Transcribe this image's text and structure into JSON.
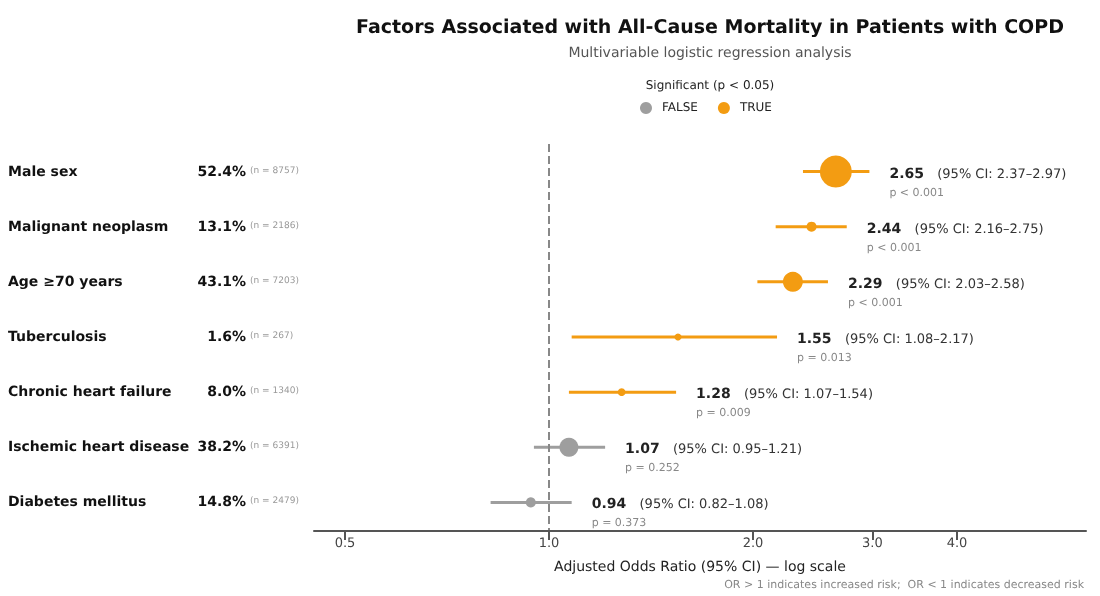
{
  "chart_data": {
    "type": "bubble",
    "title": "Factors Associated with All-Cause Mortality in Patients with COPD",
    "subtitle": "Multivariable logistic regression analysis",
    "xlabel": "Adjusted Odds Ratio (95% CI) — log scale",
    "legend_title": "Significant (p < 0.05)",
    "orientation": "horizontal",
    "log": "x",
    "marker": "circle",
    "legend": "top",
    "categories": [
      "Male sex",
      "Malignant neoplasm",
      "Age ≥70 years",
      "Tuberculosis",
      "Chronic heart failure",
      "Ischemic heart disease",
      "Diabetes mellitus"
    ],
    "series": [
      {
        "name": "FALSE",
        "color": "#9e9e9e",
        "values": [
          null,
          null,
          null,
          null,
          null,
          1.07,
          0.94
        ],
        "errors": [
          null,
          null,
          null,
          null,
          null,
          [
            0.95,
            1.21
          ],
          [
            0.82,
            1.08
          ]
        ],
        "sizes": [
          null,
          null,
          null,
          null,
          null,
          0.35,
          0.1
        ]
      },
      {
        "name": "TRUE",
        "color": "#f39c12",
        "values": [
          2.65,
          2.44,
          2.29,
          1.55,
          1.28,
          null,
          null
        ],
        "errors": [
          [
            2.37,
            2.97
          ],
          [
            2.16,
            2.75
          ],
          [
            2.03,
            2.58
          ],
          [
            1.08,
            2.17
          ],
          [
            1.07,
            1.54
          ],
          null,
          null
        ],
        "sizes": [
          1,
          0.1,
          0.39,
          0.05,
          0.06,
          null,
          null
        ]
      }
    ],
    "xlim": [
      0.45,
      6.2
    ],
    "xticks": [
      {
        "value": 0.5,
        "label": "0.5"
      },
      {
        "value": 1,
        "label": "1.0"
      },
      {
        "value": 2,
        "label": "2.0"
      },
      {
        "value": 3,
        "label": "3.0"
      },
      {
        "value": 4,
        "label": "4.0"
      }
    ],
    "ref_lines": [
      {
        "axis": "x",
        "value": 1,
        "label": null,
        "color": "#888888",
        "line_style": "dashed"
      }
    ],
    "grid": false,
    "annotations": [
      "52.4% (n = 8757)",
      "13.1% (n = 2186)",
      "43.1% (n = 7203)",
      "1.6% (n = 267)",
      "8.0% (n = 1340)",
      "38.2% (n = 6391)",
      "14.8% (n = 2479)",
      {
        "text": "2.65 (95% CI: 2.37–2.97)\np < 0.001",
        "x": 2.97,
        "y": "Male sex"
      },
      {
        "text": "2.44 (95% CI: 2.16–2.75)\np < 0.001",
        "x": 2.75,
        "y": "Malignant neoplasm"
      },
      {
        "text": "2.29 (95% CI: 2.03–2.58)\np < 0.001",
        "x": 2.58,
        "y": "Age ≥70 years"
      },
      {
        "text": "1.55 (95% CI: 1.08–2.17)\np = 0.013",
        "x": 2.17,
        "y": "Tuberculosis"
      },
      {
        "text": "1.28 (95% CI: 1.07–1.54)\np = 0.009",
        "x": 1.54,
        "y": "Chronic heart failure"
      },
      {
        "text": "1.07 (95% CI: 0.95–1.21)\np = 0.252",
        "x": 1.21,
        "y": "Ischemic heart disease"
      },
      {
        "text": "0.94 (95% CI: 0.82–1.08)\np = 0.373",
        "x": 1.08,
        "y": "Diabetes mellitus"
      },
      "OR > 1 indicates increased risk;  OR < 1 indicates decreased risk"
    ]
  }
}
